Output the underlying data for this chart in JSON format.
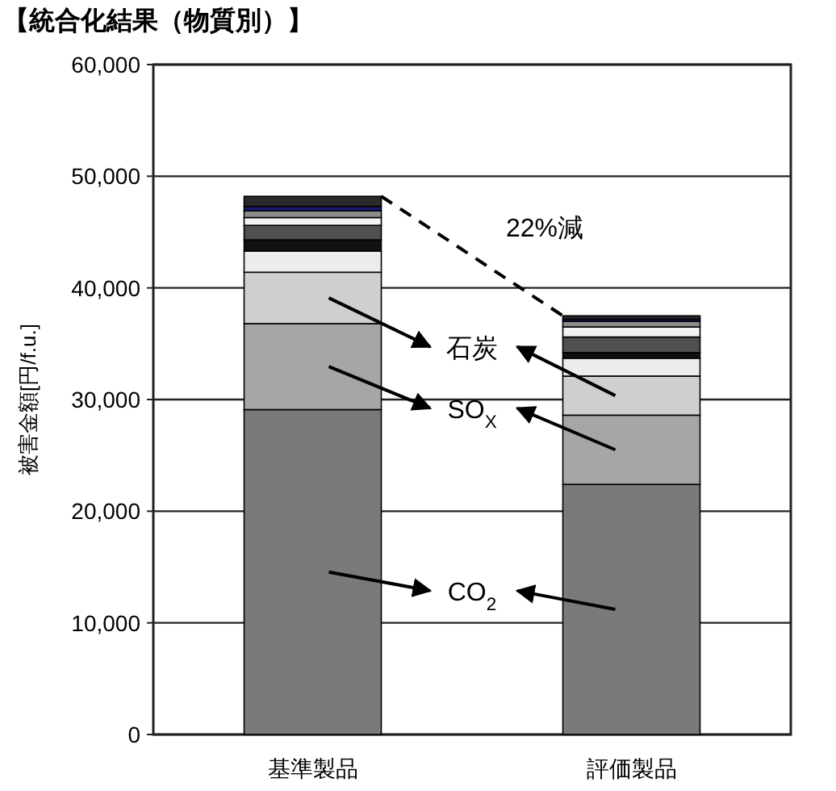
{
  "chart_data": {
    "type": "bar",
    "stacked": true,
    "title": "【統合化結果（物質別）】",
    "ylabel": "被害金額[円/f.u.]",
    "categories": [
      "基準製品",
      "評価製品"
    ],
    "series": [
      {
        "color": "#7a7a7a",
        "values": [
          29100,
          22400
        ]
      },
      {
        "color": "#a6a6a6",
        "values": [
          7700,
          6200
        ]
      },
      {
        "color": "#cfcfcf",
        "values": [
          4600,
          3500
        ]
      },
      {
        "color": "#ececec",
        "values": [
          1900,
          1600
        ]
      },
      {
        "color": "#111111",
        "values": [
          1000,
          500
        ]
      },
      {
        "color": "#505050",
        "values": [
          1300,
          1400
        ]
      },
      {
        "color": "#f2f2f2",
        "values": [
          700,
          900
        ]
      },
      {
        "color": "#8c8c8c",
        "values": [
          600,
          500
        ]
      },
      {
        "color": "#1a1a6e",
        "values": [
          400,
          200
        ]
      },
      {
        "color": "#2a2a2a",
        "values": [
          900,
          300
        ]
      }
    ],
    "ylim": [
      0,
      60000
    ],
    "yticks": [
      0,
      {
        "value": 10000,
        "label": "10,000"
      },
      {
        "value": 20000,
        "label": "20,000"
      },
      {
        "value": 30000,
        "label": "30,000"
      },
      {
        "value": 40000,
        "label": "40,000"
      },
      {
        "value": 50000,
        "label": "50,000"
      },
      {
        "value": 60000,
        "label": "60,000"
      }
    ],
    "grid": "y",
    "annotations": [
      "CO$_{2}$",
      "SO$_{X}$",
      "石炭",
      "22%減"
    ]
  }
}
